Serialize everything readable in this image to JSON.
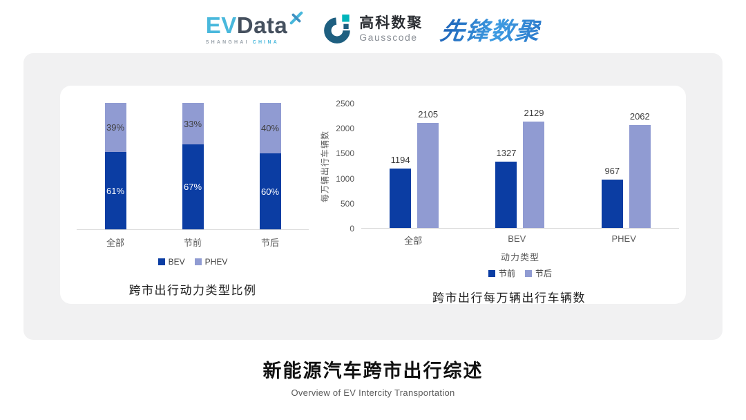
{
  "header": {
    "evdata": {
      "ev": "EV",
      "data": "Data",
      "sub_left": "SHANGHAI",
      "sub_right": "CHINA"
    },
    "gausscode": {
      "cn": "高科数聚",
      "en": "Gausscode"
    },
    "pioneer": {
      "name": "先锋数聚"
    }
  },
  "colors": {
    "series_dark": "#0b3da3",
    "series_light": "#909bd2",
    "card_bg": "#f1f1f2",
    "panel_bg": "#ffffff",
    "axis_line": "#d9d9d9",
    "tick_text": "#595959",
    "value_text": "#3d3d3d",
    "legend_text": "#404040",
    "evdata_cyan": "#49b8dc",
    "evdata_slate": "#45505e",
    "gausscode_navy": "#1e5f80",
    "gausscode_teal": "#00b4ba",
    "pioneer_blue": "#2b79cb"
  },
  "chart_data": [
    {
      "type": "bar",
      "stacked": true,
      "percent": true,
      "title": "跨市出行动力类型比例",
      "categories": [
        "全部",
        "节前",
        "节后"
      ],
      "series": [
        {
          "name": "BEV",
          "color_key": "series_dark",
          "label_color": "#ffffff",
          "values": [
            61,
            67,
            60
          ],
          "labels": [
            "61%",
            "67%",
            "60%"
          ]
        },
        {
          "name": "PHEV",
          "color_key": "series_light",
          "label_color": "#3f3f3f",
          "values": [
            39,
            33,
            40
          ],
          "labels": [
            "39%",
            "33%",
            "40%"
          ]
        }
      ],
      "xlabel": "",
      "ylabel": "",
      "ylim": [
        0,
        100
      ],
      "grid": false,
      "legend": [
        "BEV",
        "PHEV"
      ],
      "legend_position": "bottom"
    },
    {
      "type": "bar",
      "stacked": false,
      "title": "跨市出行每万辆出行车辆数",
      "categories": [
        "全部",
        "BEV",
        "PHEV"
      ],
      "series": [
        {
          "name": "节前",
          "color_key": "series_dark",
          "values": [
            1194,
            1327,
            967
          ]
        },
        {
          "name": "节后",
          "color_key": "series_light",
          "values": [
            2105,
            2129,
            2062
          ]
        }
      ],
      "xlabel": "动力类型",
      "ylabel": "每万辆出行车辆数",
      "ylim": [
        0,
        2500
      ],
      "yticks": [
        0,
        500,
        1000,
        1500,
        2000,
        2500
      ],
      "grid": false,
      "legend": [
        "节前",
        "节后"
      ],
      "legend_position": "bottom"
    }
  ],
  "footer": {
    "title": "新能源汽车跨市出行综述",
    "subtitle": "Overview of EV Intercity Transportation"
  }
}
